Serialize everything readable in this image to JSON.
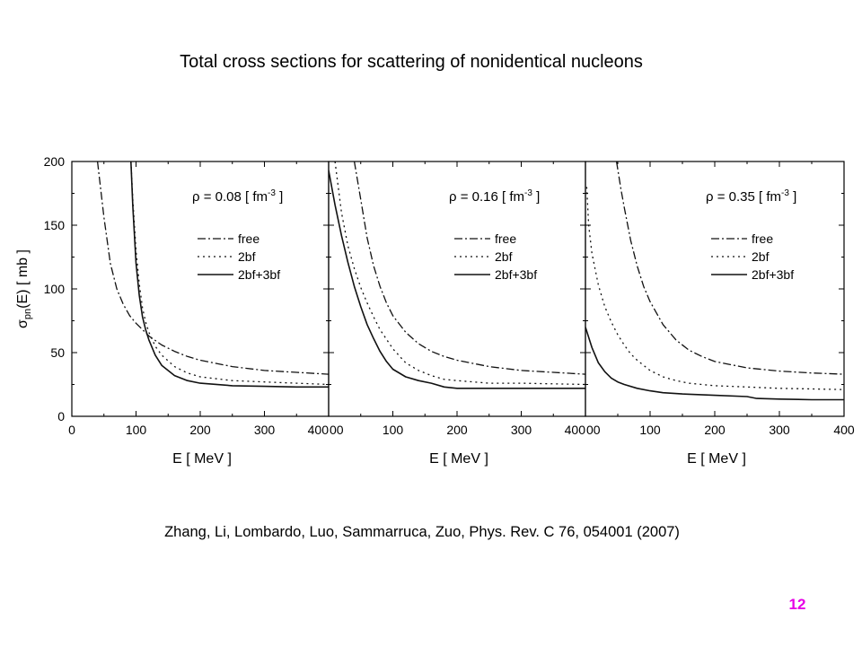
{
  "slide": {
    "title": "Total cross sections for scattering of nonidentical nucleons",
    "citation": "Zhang, Li, Lombardo, Luo, Sammarruca, Zuo, Phys. Rev. C 76, 054001 (2007)",
    "page_number": "12",
    "page_number_color": "#e600e6"
  },
  "chart_data": [
    {
      "type": "line",
      "panel_label_prefix": "ρ = 0.08 [ fm",
      "panel_label_exponent": "-3",
      "panel_label_suffix": " ]",
      "xlabel": "E [ MeV ]",
      "ylabel_main": "σ",
      "ylabel_sub": "pn",
      "ylabel_rest": "(E) [ mb ]",
      "xlim": [
        0,
        400
      ],
      "ylim": [
        0,
        200
      ],
      "xticks": [
        "0",
        "100",
        "200",
        "300",
        "400"
      ],
      "yticks": [
        "0",
        "50",
        "100",
        "150",
        "200"
      ],
      "legend_placement": "right-middle",
      "series": [
        {
          "name": "free",
          "style": "dashdot",
          "x": [
            40,
            50,
            60,
            70,
            80,
            90,
            100,
            110,
            120,
            140,
            160,
            180,
            200,
            250,
            300,
            350,
            400
          ],
          "y": [
            200,
            156,
            120,
            100,
            88,
            79,
            73,
            68,
            63,
            56,
            51,
            47,
            44,
            39,
            36,
            34.5,
            33
          ]
        },
        {
          "name": "2bf",
          "style": "dotted",
          "x": [
            92,
            95,
            100,
            105,
            110,
            115,
            120,
            130,
            140,
            160,
            180,
            200,
            250,
            300,
            350,
            400
          ],
          "y": [
            200,
            170,
            130,
            104,
            85,
            74,
            66,
            55,
            48,
            39,
            34,
            31,
            28,
            27,
            26,
            25
          ]
        },
        {
          "name": "2bf+3bf",
          "style": "solid",
          "x": [
            92,
            95,
            100,
            105,
            110,
            115,
            120,
            130,
            140,
            160,
            180,
            200,
            250,
            300,
            350,
            400
          ],
          "y": [
            200,
            165,
            120,
            95,
            78,
            68,
            60,
            48,
            40,
            32,
            28,
            26,
            24,
            23.5,
            23,
            23
          ]
        }
      ]
    },
    {
      "type": "line",
      "panel_label_prefix": "ρ = 0.16 [ fm",
      "panel_label_exponent": "-3",
      "panel_label_suffix": " ]",
      "xlabel": "E [ MeV ]",
      "xlim": [
        0,
        400
      ],
      "ylim": [
        0,
        200
      ],
      "xticks": [
        "00",
        "100",
        "200",
        "300",
        "400"
      ],
      "legend_placement": "right-middle",
      "series": [
        {
          "name": "free",
          "style": "dashdot",
          "x": [
            40,
            50,
            60,
            70,
            80,
            90,
            100,
            120,
            140,
            160,
            180,
            200,
            250,
            300,
            350,
            400
          ],
          "y": [
            200,
            170,
            140,
            118,
            102,
            89,
            79,
            66,
            57,
            51,
            47,
            44,
            39,
            36,
            34.5,
            33
          ]
        },
        {
          "name": "2bf",
          "style": "dotted",
          "x": [
            10,
            15,
            20,
            30,
            40,
            50,
            60,
            70,
            80,
            100,
            120,
            140,
            160,
            180,
            200,
            250,
            300,
            350,
            400
          ],
          "y": [
            200,
            180,
            160,
            134,
            116,
            101,
            89,
            78,
            68,
            53,
            42,
            36,
            32,
            29,
            28,
            26,
            26,
            25.5,
            25
          ]
        },
        {
          "name": "2bf+3bf",
          "style": "solid",
          "x": [
            0,
            10,
            20,
            30,
            40,
            50,
            60,
            70,
            80,
            90,
            100,
            120,
            140,
            160,
            180,
            200,
            250,
            300,
            350,
            400
          ],
          "y": [
            193,
            166,
            142,
            121,
            102,
            86,
            72,
            61,
            51,
            43,
            37,
            31,
            28,
            26,
            23,
            22,
            22,
            22,
            22,
            22
          ]
        }
      ]
    },
    {
      "type": "line",
      "panel_label_prefix": "ρ = 0.35 [ fm",
      "panel_label_exponent": "-3",
      "panel_label_suffix": " ]",
      "xlabel": "E [ MeV ]",
      "xlim": [
        0,
        400
      ],
      "ylim": [
        0,
        200
      ],
      "xticks": [
        "00",
        "100",
        "200",
        "300",
        "400"
      ],
      "legend_placement": "right-middle",
      "series": [
        {
          "name": "free",
          "style": "dashdot",
          "x": [
            48,
            55,
            60,
            70,
            80,
            90,
            100,
            120,
            140,
            160,
            180,
            200,
            250,
            300,
            350,
            400
          ],
          "y": [
            200,
            178,
            164,
            138,
            118,
            102,
            90,
            72,
            60,
            52,
            47,
            43,
            38,
            35.5,
            34,
            33
          ]
        },
        {
          "name": "2bf",
          "style": "dotted",
          "x": [
            2,
            5,
            10,
            20,
            30,
            40,
            50,
            60,
            70,
            80,
            100,
            120,
            140,
            160,
            180,
            200,
            250,
            300,
            350,
            400
          ],
          "y": [
            180,
            150,
            128,
            103,
            86,
            74,
            64,
            56,
            49,
            44,
            36,
            31,
            28,
            26,
            25,
            24,
            23,
            22,
            21.5,
            21
          ]
        },
        {
          "name": "2bf+3bf",
          "style": "solid",
          "x": [
            0,
            10,
            20,
            30,
            40,
            50,
            60,
            80,
            100,
            120,
            150,
            200,
            250,
            265,
            300,
            350,
            400
          ],
          "y": [
            70,
            54,
            42,
            35,
            30,
            27,
            25,
            22,
            20,
            18.5,
            17.5,
            16.5,
            15.5,
            14,
            13.5,
            13,
            13
          ]
        }
      ]
    }
  ]
}
